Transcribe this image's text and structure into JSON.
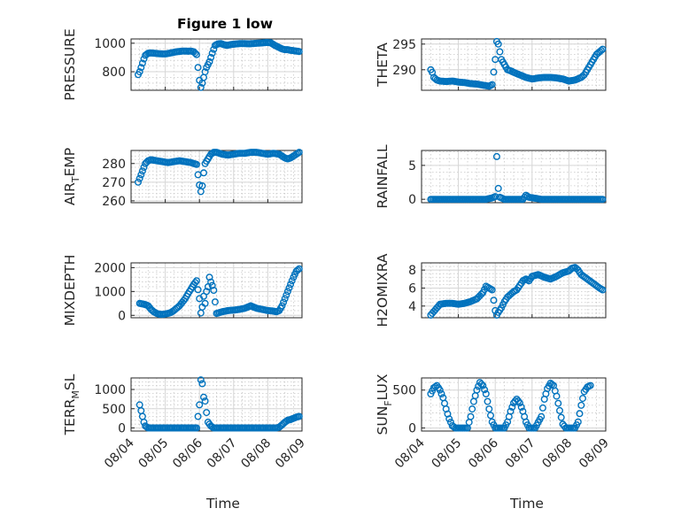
{
  "title": "Figure 1 low",
  "xlabel": "Time",
  "colors": {
    "marker": "#0072BD",
    "axis": "#262626",
    "grid": "#d6d6d6"
  },
  "chart_data": [
    {
      "type": "scatter",
      "id": "pressure",
      "ylabel": "PRESSURE",
      "title": "Figure 1 low",
      "xlim": [
        "2024-08-04",
        "2024-08-09"
      ],
      "ylim": [
        670,
        1030
      ],
      "yticks": [
        800,
        1000
      ],
      "ylim_note": "",
      "x": [
        "08/04 05:00",
        "08/04 06:00",
        "08/04 07:00",
        "08/04 08:00",
        "08/04 09:00",
        "08/04 10:00",
        "08/04 12:00",
        "08/04 14:00",
        "08/04 16:00",
        "08/04 18:00",
        "08/04 20:00",
        "08/04 22:00",
        "08/05 00:00",
        "08/05 02:00",
        "08/05 04:00",
        "08/05 06:00",
        "08/05 08:00",
        "08/05 10:00",
        "08/05 12:00",
        "08/05 14:00",
        "08/05 16:00",
        "08/05 18:00",
        "08/05 20:00",
        "08/05 22:00",
        "08/06 00:00",
        "08/06 01:00",
        "08/06 02:00",
        "08/06 03:00",
        "08/06 04:00",
        "08/06 05:00",
        "08/06 07:00",
        "08/06 09:00",
        "08/06 11:00",
        "08/06 13:00",
        "08/06 15:00",
        "08/06 17:00",
        "08/06 19:00",
        "08/06 21:00",
        "08/06 23:00",
        "08/07 02:00",
        "08/07 05:00",
        "08/07 08:00",
        "08/07 11:00",
        "08/07 14:00",
        "08/07 17:00",
        "08/07 20:00",
        "08/07 23:00",
        "08/08 02:00",
        "08/08 05:00",
        "08/08 08:00",
        "08/08 10:00",
        "08/08 12:00",
        "08/08 14:00",
        "08/08 16:00",
        "08/08 18:00",
        "08/08 20:00",
        "08/08 22:00"
      ],
      "values": [
        780,
        800,
        830,
        860,
        890,
        915,
        930,
        932,
        930,
        928,
        926,
        925,
        925,
        928,
        932,
        936,
        940,
        942,
        945,
        945,
        944,
        945,
        940,
        920,
        740,
        690,
        720,
        760,
        800,
        830,
        870,
        930,
        985,
        995,
        998,
        990,
        985,
        988,
        992,
        995,
        998,
        997,
        996,
        998,
        1000,
        1002,
        1005,
        1003,
        985,
        970,
        960,
        955,
        955,
        950,
        948,
        945,
        942
      ],
      "marker": "circle"
    },
    {
      "type": "scatter",
      "id": "theta",
      "ylabel": "THETA",
      "xlim": [
        "2024-08-04",
        "2024-08-09"
      ],
      "ylim": [
        286,
        296
      ],
      "yticks": [
        290,
        295
      ],
      "x": [
        "08/04 06:00",
        "08/04 07:00",
        "08/04 08:00",
        "08/04 10:00",
        "08/04 12:00",
        "08/04 16:00",
        "08/04 20:00",
        "08/05 00:00",
        "08/05 04:00",
        "08/05 08:00",
        "08/05 12:00",
        "08/05 16:00",
        "08/05 20:00",
        "08/05 22:00",
        "08/06 00:00",
        "08/06 01:00",
        "08/06 02:00",
        "08/06 03:00",
        "08/06 04:00",
        "08/06 06:00",
        "08/06 08:00",
        "08/06 10:00",
        "08/06 12:00",
        "08/06 16:00",
        "08/06 20:00",
        "08/07 00:00",
        "08/07 04:00",
        "08/07 08:00",
        "08/07 12:00",
        "08/07 16:00",
        "08/07 20:00",
        "08/08 00:00",
        "08/08 04:00",
        "08/08 08:00",
        "08/08 10:00",
        "08/08 12:00",
        "08/08 14:00",
        "08/08 16:00",
        "08/08 18:00",
        "08/08 20:00",
        "08/08 22:00"
      ],
      "values": [
        290,
        289.5,
        288.5,
        288,
        287.8,
        287.7,
        287.8,
        287.6,
        287.5,
        287.3,
        287.2,
        287.0,
        286.8,
        287.1,
        292,
        295.5,
        295,
        293.5,
        292,
        291,
        290,
        289.8,
        289.5,
        289,
        288.5,
        288.2,
        288.4,
        288.5,
        288.5,
        288.4,
        288.2,
        287.8,
        288,
        288.5,
        289,
        290,
        291,
        292,
        293,
        293.5,
        294
      ],
      "marker": "circle"
    },
    {
      "type": "scatter",
      "id": "airtemp",
      "ylabel": "AIR_TEMP",
      "ylabel_display": [
        "AIR",
        "T",
        "EMP"
      ],
      "xlim": [
        "2024-08-04",
        "2024-08-09"
      ],
      "ylim": [
        259,
        287
      ],
      "yticks": [
        260,
        270,
        280
      ],
      "x": [
        "08/04 05:00",
        "08/04 06:00",
        "08/04 08:00",
        "08/04 10:00",
        "08/04 12:00",
        "08/04 14:00",
        "08/04 18:00",
        "08/04 22:00",
        "08/05 02:00",
        "08/05 06:00",
        "08/05 10:00",
        "08/05 14:00",
        "08/05 18:00",
        "08/05 22:00",
        "08/06 00:00",
        "08/06 01:00",
        "08/06 02:00",
        "08/06 03:00",
        "08/06 04:00",
        "08/06 06:00",
        "08/06 08:00",
        "08/06 10:00",
        "08/06 12:00",
        "08/06 16:00",
        "08/06 20:00",
        "08/07 00:00",
        "08/07 04:00",
        "08/07 08:00",
        "08/07 12:00",
        "08/07 16:00",
        "08/07 20:00",
        "08/08 00:00",
        "08/08 04:00",
        "08/08 08:00",
        "08/08 10:00",
        "08/08 12:00",
        "08/08 14:00",
        "08/08 16:00",
        "08/08 18:00",
        "08/08 20:00",
        "08/08 22:00"
      ],
      "values": [
        270,
        272,
        276,
        280,
        281.5,
        282,
        281.5,
        281,
        280.5,
        281,
        281.5,
        281,
        280.5,
        279.5,
        268.5,
        265,
        268,
        275,
        280,
        282.5,
        285,
        286,
        286,
        285,
        284.5,
        285,
        285.5,
        285.5,
        286,
        286,
        285.5,
        285,
        285.5,
        285,
        284,
        283,
        282.5,
        283,
        284,
        285,
        286
      ],
      "marker": "circle"
    },
    {
      "type": "scatter",
      "id": "rainfall",
      "ylabel": "RAINFALL",
      "xlim": [
        "2024-08-04",
        "2024-08-09"
      ],
      "ylim": [
        -0.5,
        7.2
      ],
      "yticks": [
        0,
        5
      ],
      "x": [
        "08/04 06:00",
        "08/04 12:00",
        "08/04 18:00",
        "08/05 00:00",
        "08/05 06:00",
        "08/05 12:00",
        "08/05 18:00",
        "08/05 22:00",
        "08/06 00:00",
        "08/06 01:00",
        "08/06 02:00",
        "08/06 03:00",
        "08/06 06:00",
        "08/06 12:00",
        "08/06 18:00",
        "08/06 20:00",
        "08/06 22:00",
        "08/07 06:00",
        "08/07 12:00",
        "08/07 18:00",
        "08/08 00:00",
        "08/08 06:00",
        "08/08 12:00",
        "08/08 18:00",
        "08/08 22:00"
      ],
      "values": [
        0,
        0,
        0,
        0,
        0,
        0,
        0,
        0.2,
        0.4,
        6.3,
        1.6,
        0.3,
        0,
        0,
        0,
        0.6,
        0.3,
        0,
        0,
        0,
        0,
        0,
        0,
        0,
        0
      ],
      "marker": "circle"
    },
    {
      "type": "scatter",
      "id": "mixdepth",
      "ylabel": "MIXDEPTH",
      "xlim": [
        "2024-08-04",
        "2024-08-09"
      ],
      "ylim": [
        -100,
        2200
      ],
      "yticks": [
        0,
        1000,
        2000
      ],
      "x": [
        "08/04 06:00",
        "08/04 08:00",
        "08/04 10:00",
        "08/04 12:00",
        "08/04 14:00",
        "08/04 16:00",
        "08/04 18:00",
        "08/04 20:00",
        "08/04 22:00",
        "08/05 00:00",
        "08/05 02:00",
        "08/05 04:00",
        "08/05 06:00",
        "08/05 08:00",
        "08/05 10:00",
        "08/05 12:00",
        "08/05 14:00",
        "08/05 16:00",
        "08/05 18:00",
        "08/05 20:00",
        "08/05 22:00",
        "08/06 00:00",
        "08/06 01:00",
        "08/06 02:00",
        "08/06 03:00",
        "08/06 04:00",
        "08/06 05:00",
        "08/06 06:00",
        "08/06 07:00",
        "08/06 08:00",
        "08/06 09:00",
        "08/06 10:00",
        "08/06 12:00",
        "08/06 16:00",
        "08/06 20:00",
        "08/07 00:00",
        "08/07 04:00",
        "08/07 08:00",
        "08/07 12:00",
        "08/07 14:00",
        "08/07 16:00",
        "08/07 20:00",
        "08/08 00:00",
        "08/08 04:00",
        "08/08 06:00",
        "08/08 08:00",
        "08/08 10:00",
        "08/08 12:00",
        "08/08 14:00",
        "08/08 16:00",
        "08/08 18:00",
        "08/08 20:00",
        "08/08 22:00"
      ],
      "values": [
        500,
        480,
        450,
        400,
        250,
        150,
        80,
        50,
        40,
        60,
        80,
        120,
        200,
        300,
        400,
        550,
        700,
        900,
        1100,
        1300,
        1450,
        700,
        100,
        350,
        800,
        500,
        1000,
        1200,
        1600,
        1400,
        1250,
        1050,
        80,
        150,
        200,
        220,
        250,
        300,
        400,
        350,
        300,
        250,
        200,
        180,
        150,
        200,
        400,
        700,
        1000,
        1300,
        1600,
        1850,
        1950
      ],
      "marker": "circle"
    },
    {
      "type": "scatter",
      "id": "h2omixra",
      "ylabel": "H2OMIXRA",
      "xlim": [
        "2024-08-04",
        "2024-08-09"
      ],
      "ylim": [
        2.7,
        8.8
      ],
      "yticks": [
        4,
        6,
        8
      ],
      "x": [
        "08/04 06:00",
        "08/04 08:00",
        "08/04 10:00",
        "08/04 12:00",
        "08/04 16:00",
        "08/04 20:00",
        "08/05 00:00",
        "08/05 04:00",
        "08/05 08:00",
        "08/05 12:00",
        "08/05 16:00",
        "08/05 18:00",
        "08/05 20:00",
        "08/05 22:00",
        "08/06 00:00",
        "08/06 01:00",
        "08/06 02:00",
        "08/06 04:00",
        "08/06 06:00",
        "08/06 08:00",
        "08/06 10:00",
        "08/06 12:00",
        "08/06 14:00",
        "08/06 16:00",
        "08/06 18:00",
        "08/06 20:00",
        "08/06 22:00",
        "08/07 00:00",
        "08/07 04:00",
        "08/07 08:00",
        "08/07 12:00",
        "08/07 16:00",
        "08/07 20:00",
        "08/08 00:00",
        "08/08 02:00",
        "08/08 04:00",
        "08/08 06:00",
        "08/08 08:00",
        "08/08 12:00",
        "08/08 16:00",
        "08/08 20:00",
        "08/08 22:00"
      ],
      "values": [
        3.0,
        3.4,
        3.8,
        4.2,
        4.3,
        4.3,
        4.2,
        4.3,
        4.5,
        4.8,
        5.5,
        6.2,
        6.0,
        5.8,
        3.5,
        3.0,
        3.3,
        3.8,
        4.5,
        5.0,
        5.3,
        5.6,
        5.8,
        6.3,
        6.8,
        7.0,
        6.8,
        7.3,
        7.5,
        7.2,
        7.0,
        7.3,
        7.7,
        7.9,
        8.2,
        8.3,
        8.0,
        7.5,
        7.0,
        6.5,
        6.0,
        5.8
      ],
      "marker": "circle"
    },
    {
      "type": "scatter",
      "id": "terrmsl",
      "ylabel": "TERR_MSL",
      "ylabel_display": [
        "TERR",
        "M",
        "SL"
      ],
      "xlim": [
        "2024-08-04",
        "2024-08-09"
      ],
      "ylim": [
        -80,
        1300
      ],
      "yticks": [
        0,
        500,
        1000
      ],
      "x": [
        "08/04 06:00",
        "08/04 07:00",
        "08/04 08:00",
        "08/04 09:00",
        "08/04 10:00",
        "08/04 12:00",
        "08/04 16:00",
        "08/04 20:00",
        "08/05 00:00",
        "08/05 06:00",
        "08/05 12:00",
        "08/05 18:00",
        "08/05 22:00",
        "08/06 00:00",
        "08/06 01:00",
        "08/06 02:00",
        "08/06 03:00",
        "08/06 04:00",
        "08/06 05:00",
        "08/06 06:00",
        "08/06 08:00",
        "08/06 10:00",
        "08/06 12:00",
        "08/06 18:00",
        "08/07 00:00",
        "08/07 06:00",
        "08/07 12:00",
        "08/07 18:00",
        "08/08 00:00",
        "08/08 06:00",
        "08/08 08:00",
        "08/08 10:00",
        "08/08 12:00",
        "08/08 14:00",
        "08/08 16:00",
        "08/08 18:00",
        "08/08 20:00",
        "08/08 22:00"
      ],
      "values": [
        600,
        450,
        300,
        150,
        50,
        0,
        0,
        0,
        0,
        0,
        0,
        0,
        0,
        600,
        1250,
        1150,
        800,
        700,
        400,
        150,
        50,
        0,
        0,
        0,
        0,
        0,
        0,
        0,
        0,
        0,
        20,
        80,
        150,
        200,
        220,
        250,
        280,
        300
      ],
      "marker": "circle"
    },
    {
      "type": "scatter",
      "id": "sunflux",
      "ylabel": "SUN_FLUX",
      "ylabel_display": [
        "SUN",
        "F",
        "LUX"
      ],
      "xlim": [
        "2024-08-04",
        "2024-08-09"
      ],
      "ylim": [
        -40,
        660
      ],
      "yticks": [
        0,
        500
      ],
      "x": [
        "08/04 06:00",
        "08/04 08:00",
        "08/04 10:00",
        "08/04 12:00",
        "08/04 14:00",
        "08/04 16:00",
        "08/04 18:00",
        "08/04 20:00",
        "08/04 22:00",
        "08/05 00:00",
        "08/05 02:00",
        "08/05 06:00",
        "08/05 08:00",
        "08/05 10:00",
        "08/05 12:00",
        "08/05 14:00",
        "08/05 16:00",
        "08/05 18:00",
        "08/05 20:00",
        "08/05 22:00",
        "08/06 00:00",
        "08/06 02:00",
        "08/06 06:00",
        "08/06 08:00",
        "08/06 10:00",
        "08/06 12:00",
        "08/06 14:00",
        "08/06 16:00",
        "08/06 18:00",
        "08/06 20:00",
        "08/06 22:00",
        "08/07 00:00",
        "08/07 02:00",
        "08/07 06:00",
        "08/07 08:00",
        "08/07 10:00",
        "08/07 12:00",
        "08/07 14:00",
        "08/07 16:00",
        "08/07 18:00",
        "08/07 20:00",
        "08/07 22:00",
        "08/08 00:00",
        "08/08 04:00",
        "08/08 06:00",
        "08/08 08:00",
        "08/08 10:00",
        "08/08 12:00",
        "08/08 14:00"
      ],
      "values": [
        450,
        530,
        560,
        500,
        400,
        250,
        120,
        30,
        0,
        0,
        0,
        0,
        150,
        350,
        500,
        600,
        560,
        450,
        250,
        80,
        0,
        0,
        0,
        80,
        220,
        330,
        380,
        330,
        220,
        80,
        0,
        0,
        0,
        150,
        380,
        520,
        590,
        560,
        420,
        230,
        50,
        0,
        0,
        0,
        80,
        300,
        480,
        540,
        560
      ],
      "marker": "circle"
    }
  ],
  "xticks": [
    "08/04",
    "08/05",
    "08/06",
    "08/07",
    "08/08",
    "08/09"
  ]
}
